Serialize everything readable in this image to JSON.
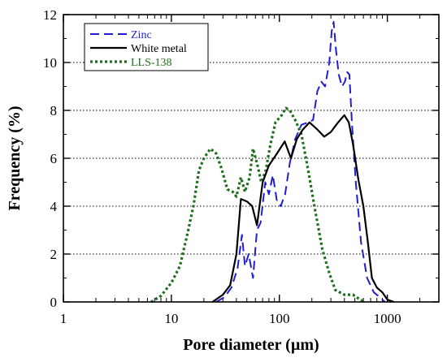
{
  "chart_data": {
    "type": "line",
    "xlabel": "Pore diameter (µm)",
    "ylabel": "Frequency (%)",
    "xscale": "log",
    "xlim": [
      1,
      3000
    ],
    "ylim": [
      0,
      12
    ],
    "x_tick_labels": [
      "1",
      "10",
      "100",
      "1000"
    ],
    "x_ticks": [
      1,
      10,
      100,
      1000
    ],
    "y_tick_labels": [
      "0",
      "2",
      "4",
      "6",
      "8",
      "10",
      "12"
    ],
    "y_ticks": [
      0,
      2,
      4,
      6,
      8,
      10,
      12
    ],
    "grid": "horizontal dotted",
    "legend_position": "top-left",
    "series": [
      {
        "name": "Zinc",
        "color": "#1f1fd0",
        "dash": "dashed",
        "points": [
          [
            26,
            0
          ],
          [
            31,
            0.2
          ],
          [
            36,
            0.6
          ],
          [
            41,
            1.4
          ],
          [
            45,
            2.8
          ],
          [
            48,
            1.5
          ],
          [
            52,
            2.0
          ],
          [
            57,
            1.0
          ],
          [
            62,
            3.0
          ],
          [
            67,
            3.3
          ],
          [
            74,
            5.0
          ],
          [
            80,
            4.5
          ],
          [
            87,
            5.3
          ],
          [
            95,
            4.2
          ],
          [
            103,
            4.0
          ],
          [
            113,
            4.5
          ],
          [
            125,
            5.8
          ],
          [
            140,
            6.8
          ],
          [
            160,
            7.4
          ],
          [
            185,
            7.5
          ],
          [
            205,
            7.6
          ],
          [
            225,
            8.8
          ],
          [
            245,
            9.2
          ],
          [
            265,
            9.0
          ],
          [
            290,
            10.0
          ],
          [
            305,
            11.3
          ],
          [
            318,
            11.7
          ],
          [
            335,
            10.5
          ],
          [
            355,
            9.5
          ],
          [
            380,
            9.0
          ],
          [
            405,
            9.2
          ],
          [
            425,
            9.6
          ],
          [
            445,
            9.5
          ],
          [
            470,
            7.5
          ],
          [
            510,
            5.0
          ],
          [
            570,
            2.5
          ],
          [
            650,
            1.0
          ],
          [
            750,
            0.4
          ],
          [
            850,
            0.2
          ],
          [
            950,
            0
          ]
        ]
      },
      {
        "name": "White metal",
        "color": "#000000",
        "dash": "solid",
        "points": [
          [
            24,
            0
          ],
          [
            30,
            0.3
          ],
          [
            35,
            0.7
          ],
          [
            40,
            2.0
          ],
          [
            44,
            4.3
          ],
          [
            50,
            4.2
          ],
          [
            56,
            4.0
          ],
          [
            62,
            3.2
          ],
          [
            70,
            5.0
          ],
          [
            80,
            5.7
          ],
          [
            95,
            6.2
          ],
          [
            112,
            6.7
          ],
          [
            128,
            6.0
          ],
          [
            145,
            6.8
          ],
          [
            165,
            7.2
          ],
          [
            190,
            7.5
          ],
          [
            225,
            7.2
          ],
          [
            260,
            6.9
          ],
          [
            300,
            7.1
          ],
          [
            350,
            7.5
          ],
          [
            400,
            7.8
          ],
          [
            440,
            7.5
          ],
          [
            480,
            6.6
          ],
          [
            540,
            5.1
          ],
          [
            600,
            4.0
          ],
          [
            660,
            2.5
          ],
          [
            720,
            1.0
          ],
          [
            800,
            0.6
          ],
          [
            900,
            0.4
          ],
          [
            1000,
            0.1
          ],
          [
            1150,
            0
          ]
        ]
      },
      {
        "name": "LLS-138",
        "color": "#1e6e1e",
        "dash": "dotted",
        "points": [
          [
            6.5,
            0
          ],
          [
            8,
            0.25
          ],
          [
            10,
            0.8
          ],
          [
            12,
            1.5
          ],
          [
            14,
            2.8
          ],
          [
            16,
            4.0
          ],
          [
            18,
            5.5
          ],
          [
            20,
            6.0
          ],
          [
            23,
            6.4
          ],
          [
            26,
            6.2
          ],
          [
            29,
            5.6
          ],
          [
            33,
            4.7
          ],
          [
            37,
            4.6
          ],
          [
            40,
            4.4
          ],
          [
            44,
            5.2
          ],
          [
            48,
            4.6
          ],
          [
            53,
            5.2
          ],
          [
            57,
            6.4
          ],
          [
            62,
            5.8
          ],
          [
            68,
            5.0
          ],
          [
            75,
            5.5
          ],
          [
            82,
            6.5
          ],
          [
            92,
            7.5
          ],
          [
            105,
            7.8
          ],
          [
            115,
            8.1
          ],
          [
            125,
            8.0
          ],
          [
            140,
            7.6
          ],
          [
            160,
            7.0
          ],
          [
            185,
            5.5
          ],
          [
            215,
            3.8
          ],
          [
            250,
            2.2
          ],
          [
            290,
            1.2
          ],
          [
            330,
            0.5
          ],
          [
            400,
            0.3
          ],
          [
            480,
            0.3
          ],
          [
            560,
            0.1
          ],
          [
            620,
            0
          ]
        ]
      }
    ]
  }
}
